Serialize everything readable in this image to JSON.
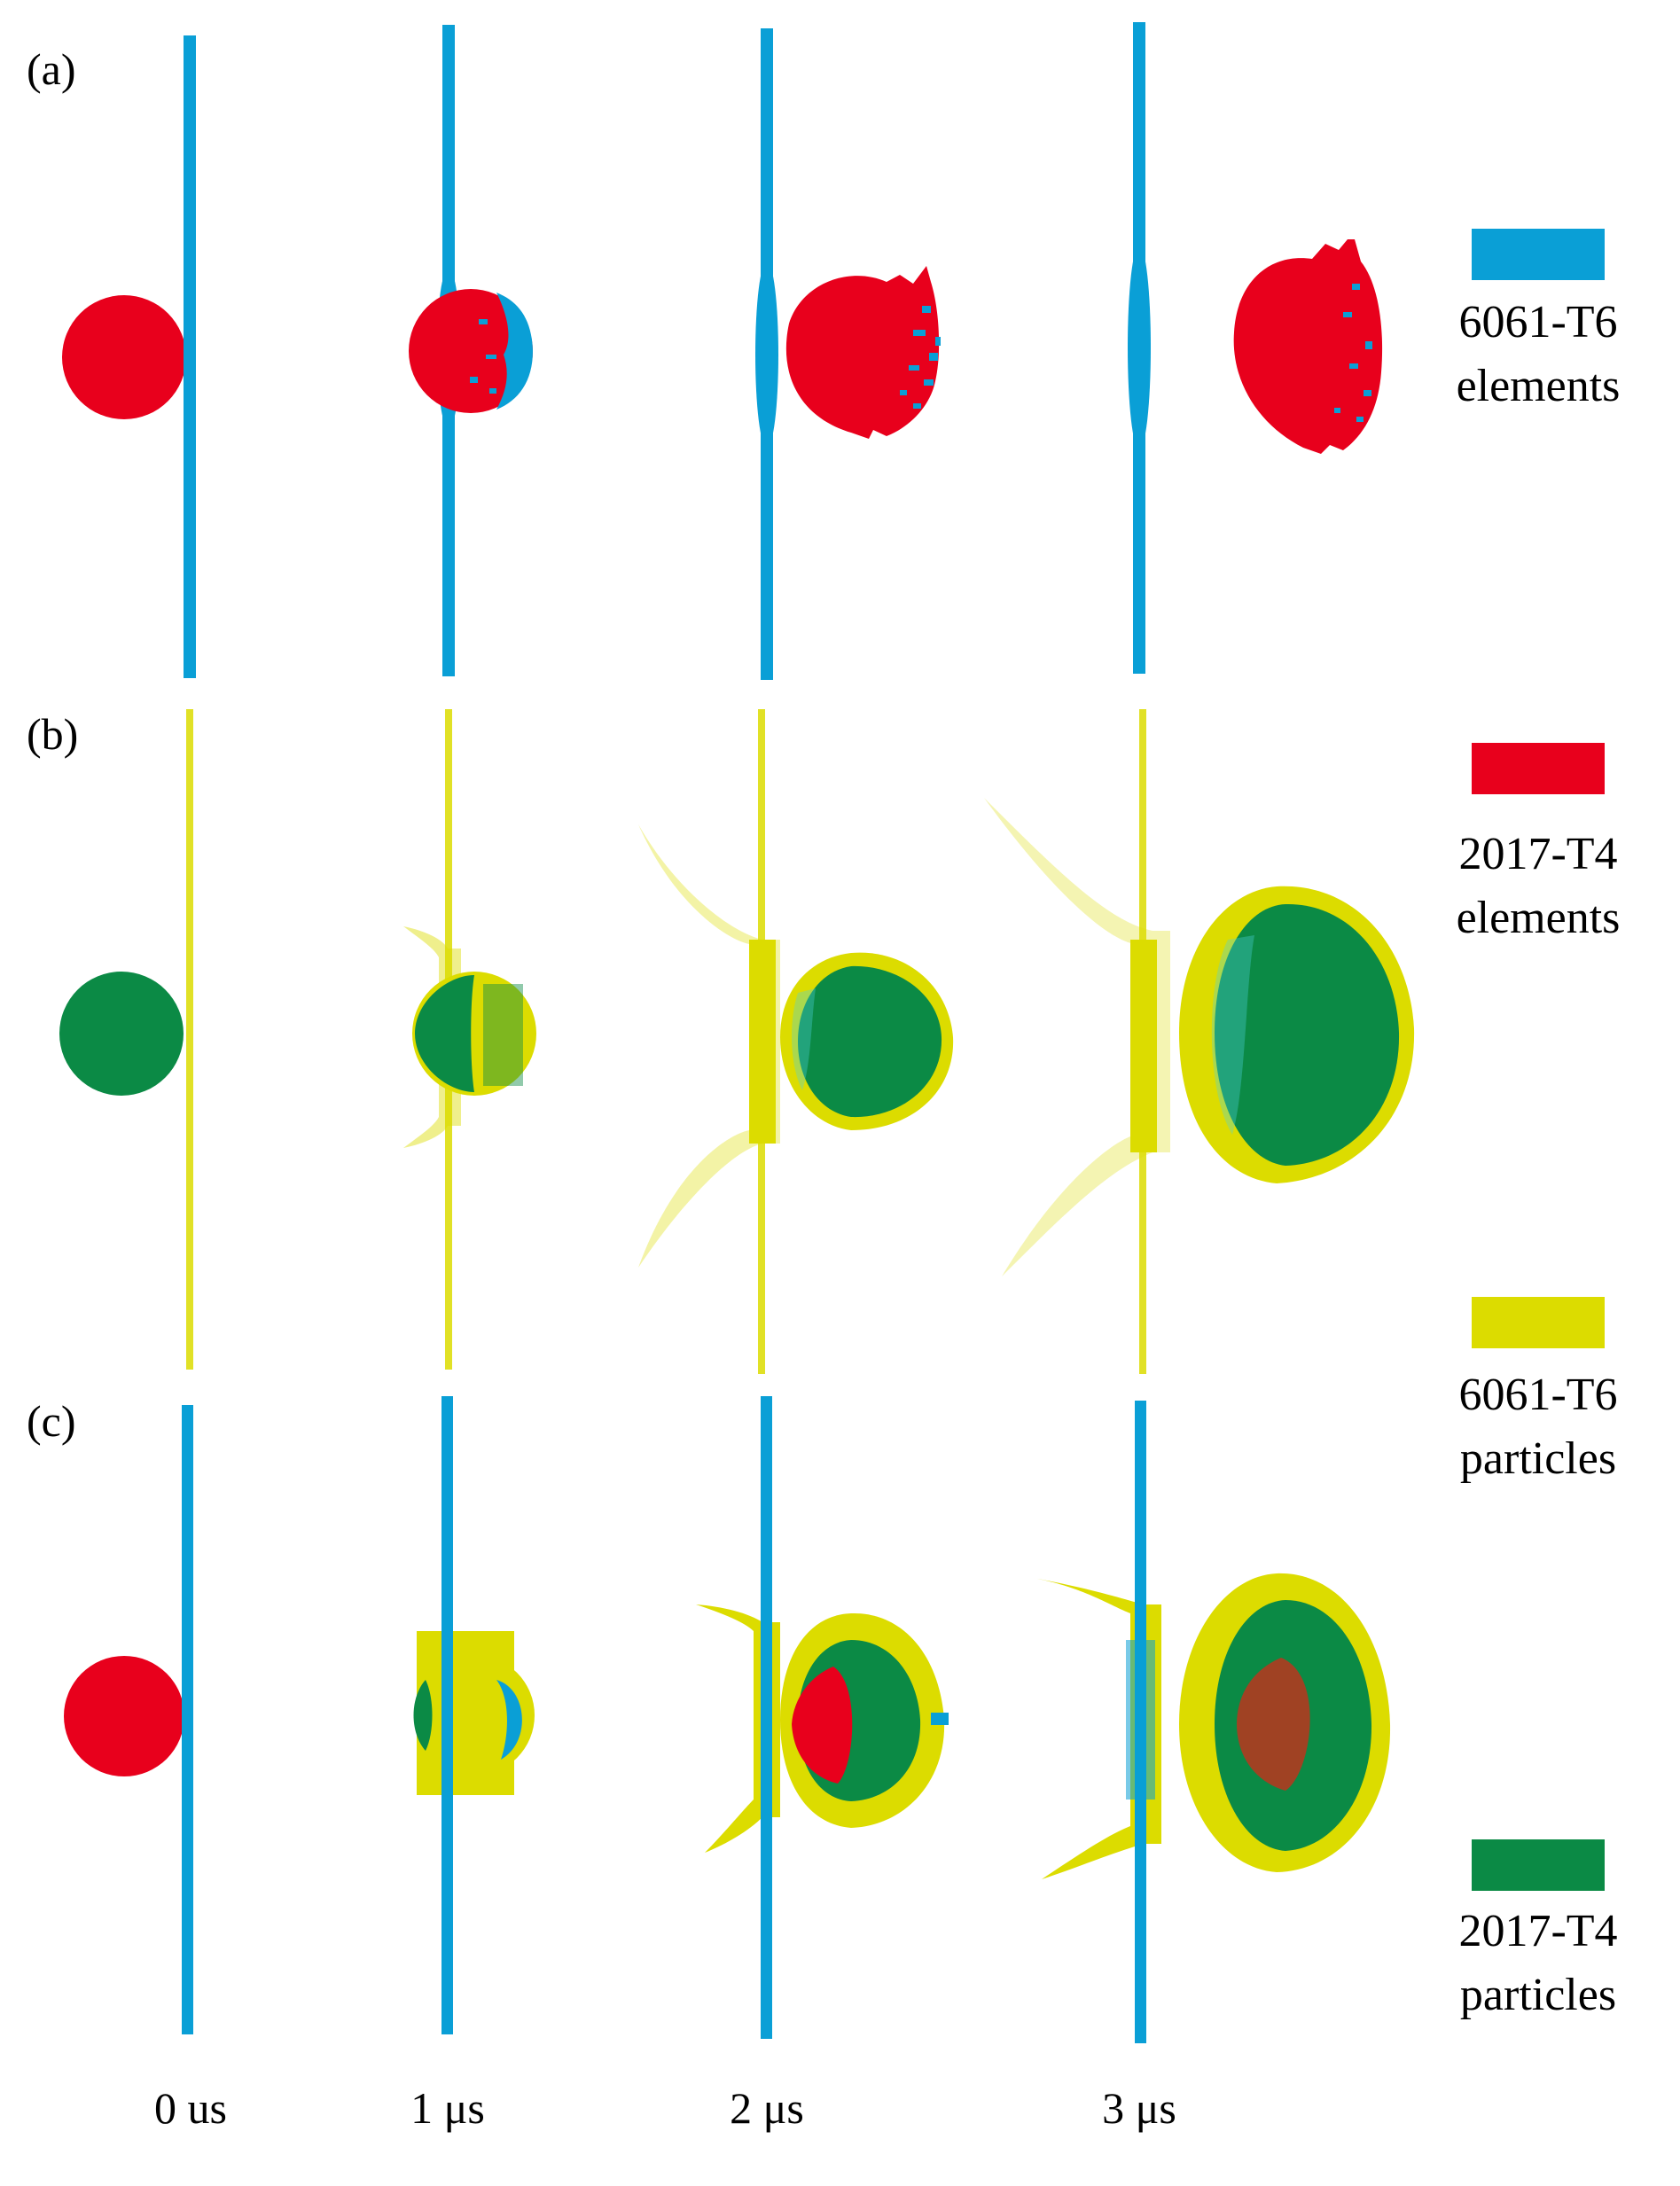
{
  "panels": [
    {
      "label": "(a)",
      "mode": "elements"
    },
    {
      "label": "(b)",
      "mode": "particles"
    },
    {
      "label": "(c)",
      "mode": "coupled"
    }
  ],
  "time_labels": [
    "0 us",
    "1 μs",
    "2 μs",
    "3 μs"
  ],
  "legend": [
    {
      "line1": "6061-T6",
      "line2": "elements",
      "color": "#0a9fd6"
    },
    {
      "line1": "2017-T4",
      "line2": "elements",
      "color": "#e8001c"
    },
    {
      "line1": "6061-T6",
      "line2": "particles",
      "color": "#dcdc00"
    },
    {
      "line1": "2017-T4",
      "line2": "particles",
      "color": "#0b8a45"
    }
  ],
  "colors": {
    "plate_elements": "#0a9fd6",
    "projectile_elements": "#e8001c",
    "plate_particles": "#dcdc00",
    "projectile_particles": "#0b8a45",
    "particle_highlight": "#4ed0e0"
  }
}
